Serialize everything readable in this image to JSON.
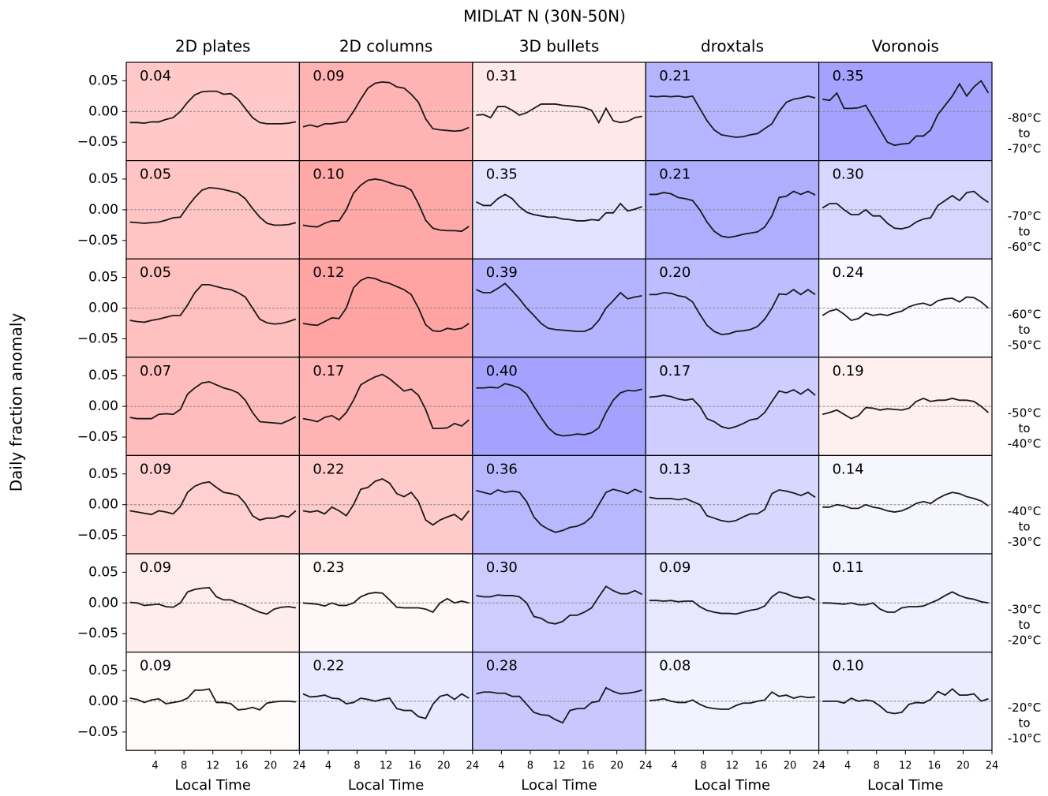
{
  "title": "MIDLAT N (30N-50N)",
  "ylabel": "Daily fraction anomaly",
  "xlabel": "Local Time",
  "columns": [
    "2D plates",
    "2D columns",
    "3D bullets",
    "droxtals",
    "Voronois"
  ],
  "rows": [
    [
      "-80°C",
      "to",
      "-70°C"
    ],
    [
      "-70°C",
      "to",
      "-60°C"
    ],
    [
      "-60°C",
      "to",
      "-50°C"
    ],
    [
      "-50°C",
      "to",
      "-40°C"
    ],
    [
      "-40°C",
      "to",
      "-30°C"
    ],
    [
      "-30°C",
      "to",
      "-20°C"
    ],
    [
      "-20°C",
      "to",
      "-10°C"
    ]
  ],
  "x": [
    0.5,
    1.5,
    2.5,
    3.5,
    4.5,
    5.5,
    6.5,
    7.5,
    8.5,
    9.5,
    10.5,
    11.5,
    12.5,
    13.5,
    14.5,
    15.5,
    16.5,
    17.5,
    18.5,
    19.5,
    20.5,
    21.5,
    22.5,
    23.5
  ],
  "xlim": [
    0,
    24
  ],
  "xticks": [
    4,
    8,
    12,
    16,
    20,
    24
  ],
  "ylim": [
    -0.08,
    0.08
  ],
  "yticks": [
    {
      "value": 0.05,
      "label": "0.05"
    },
    {
      "value": 0,
      "label": "0.00"
    },
    {
      "value": -0.05,
      "label": "−0.05"
    }
  ],
  "line_color": "#1a1a1a",
  "chart_data": [
    {
      "type": "line",
      "annotation": "0.04",
      "background": "#ffc9c9",
      "values": [
        -0.018,
        -0.018,
        -0.019,
        -0.017,
        -0.017,
        -0.013,
        -0.01,
        0.0,
        0.015,
        0.027,
        0.032,
        0.033,
        0.033,
        0.028,
        0.029,
        0.02,
        0.005,
        -0.01,
        -0.018,
        -0.02,
        -0.02,
        -0.02,
        -0.019,
        -0.017
      ]
    },
    {
      "type": "line",
      "annotation": "0.09",
      "background": "#ffb3b3",
      "values": [
        -0.025,
        -0.022,
        -0.025,
        -0.02,
        -0.02,
        -0.018,
        -0.017,
        0.0,
        0.02,
        0.038,
        0.046,
        0.048,
        0.047,
        0.04,
        0.038,
        0.028,
        0.015,
        -0.012,
        -0.028,
        -0.03,
        -0.031,
        -0.032,
        -0.031,
        -0.026
      ]
    },
    {
      "type": "line",
      "annotation": "0.31",
      "background": "#ffe8e8",
      "values": [
        -0.006,
        -0.005,
        -0.01,
        0.008,
        0.008,
        0.002,
        -0.006,
        -0.002,
        0.005,
        0.012,
        0.012,
        0.012,
        0.01,
        0.009,
        0.008,
        0.006,
        0.002,
        -0.018,
        0.005,
        -0.015,
        -0.018,
        -0.016,
        -0.01,
        -0.008
      ]
    },
    {
      "type": "line",
      "annotation": "0.21",
      "background": "#b5b5ff",
      "values": [
        0.025,
        0.024,
        0.025,
        0.024,
        0.025,
        0.023,
        0.025,
        0.005,
        -0.015,
        -0.03,
        -0.038,
        -0.04,
        -0.042,
        -0.041,
        -0.038,
        -0.036,
        -0.028,
        -0.02,
        0.0,
        0.015,
        0.02,
        0.022,
        0.025,
        0.022
      ]
    },
    {
      "type": "line",
      "annotation": "0.35",
      "background": "#a3a3ff",
      "values": [
        0.02,
        0.018,
        0.03,
        0.005,
        0.005,
        0.006,
        0.01,
        -0.01,
        -0.03,
        -0.05,
        -0.055,
        -0.053,
        -0.052,
        -0.04,
        -0.04,
        -0.03,
        -0.005,
        0.01,
        0.025,
        0.045,
        0.025,
        0.04,
        0.05,
        0.03
      ]
    },
    {
      "type": "line",
      "annotation": "0.05",
      "background": "#ffc4c4",
      "values": [
        -0.02,
        -0.021,
        -0.022,
        -0.021,
        -0.02,
        -0.017,
        -0.013,
        -0.012,
        0.005,
        0.02,
        0.032,
        0.036,
        0.035,
        0.033,
        0.03,
        0.027,
        0.018,
        0.002,
        -0.012,
        -0.022,
        -0.025,
        -0.025,
        -0.024,
        -0.021
      ]
    },
    {
      "type": "line",
      "annotation": "0.10",
      "background": "#ffa8a8",
      "values": [
        -0.025,
        -0.027,
        -0.028,
        -0.022,
        -0.018,
        -0.018,
        0.0,
        0.027,
        0.04,
        0.048,
        0.05,
        0.048,
        0.044,
        0.04,
        0.038,
        0.032,
        0.01,
        -0.017,
        -0.03,
        -0.033,
        -0.034,
        -0.034,
        -0.035,
        -0.027
      ]
    },
    {
      "type": "line",
      "annotation": "0.35",
      "background": "#e3e3ff",
      "values": [
        0.013,
        0.007,
        0.007,
        0.018,
        0.025,
        0.018,
        0.005,
        -0.004,
        -0.008,
        -0.01,
        -0.012,
        -0.012,
        -0.015,
        -0.016,
        -0.018,
        -0.018,
        -0.016,
        -0.017,
        -0.005,
        -0.005,
        0.01,
        -0.002,
        0.001,
        0.005
      ]
    },
    {
      "type": "line",
      "annotation": "0.21",
      "background": "#aeaeff",
      "values": [
        0.025,
        0.025,
        0.028,
        0.026,
        0.02,
        0.018,
        0.015,
        0.0,
        -0.02,
        -0.035,
        -0.043,
        -0.045,
        -0.043,
        -0.04,
        -0.038,
        -0.036,
        -0.028,
        -0.01,
        0.02,
        0.022,
        0.03,
        0.025,
        0.03,
        0.024
      ]
    },
    {
      "type": "line",
      "annotation": "0.30",
      "background": "#d6d6ff",
      "values": [
        0.003,
        0.01,
        0.01,
        0.0,
        -0.008,
        -0.008,
        0.0,
        -0.01,
        -0.01,
        -0.022,
        -0.03,
        -0.031,
        -0.028,
        -0.02,
        -0.015,
        -0.013,
        0.007,
        0.015,
        0.023,
        0.015,
        0.028,
        0.03,
        0.02,
        0.012
      ]
    },
    {
      "type": "line",
      "annotation": "0.05",
      "background": "#ffc0c0",
      "values": [
        -0.02,
        -0.022,
        -0.023,
        -0.02,
        -0.018,
        -0.015,
        -0.012,
        -0.012,
        0.005,
        0.025,
        0.038,
        0.038,
        0.035,
        0.032,
        0.03,
        0.025,
        0.018,
        0.0,
        -0.018,
        -0.024,
        -0.026,
        -0.025,
        -0.022,
        -0.018
      ]
    },
    {
      "type": "line",
      "annotation": "0.12",
      "background": "#ffa3a3",
      "values": [
        -0.025,
        -0.027,
        -0.028,
        -0.022,
        -0.016,
        -0.017,
        0.0,
        0.033,
        0.045,
        0.05,
        0.048,
        0.043,
        0.04,
        0.035,
        0.03,
        0.022,
        0.0,
        -0.027,
        -0.037,
        -0.038,
        -0.033,
        -0.035,
        -0.033,
        -0.025
      ]
    },
    {
      "type": "line",
      "annotation": "0.39",
      "background": "#b3b3ff",
      "values": [
        0.03,
        0.025,
        0.025,
        0.032,
        0.04,
        0.028,
        0.015,
        0.0,
        -0.012,
        -0.025,
        -0.033,
        -0.035,
        -0.036,
        -0.037,
        -0.038,
        -0.038,
        -0.033,
        -0.02,
        0.0,
        0.012,
        0.025,
        0.015,
        0.018,
        0.02
      ]
    },
    {
      "type": "line",
      "annotation": "0.20",
      "background": "#bdbdff",
      "values": [
        0.022,
        0.022,
        0.025,
        0.024,
        0.02,
        0.018,
        0.01,
        -0.01,
        -0.028,
        -0.038,
        -0.043,
        -0.042,
        -0.038,
        -0.037,
        -0.035,
        -0.03,
        -0.018,
        0.0,
        0.023,
        0.022,
        0.03,
        0.022,
        0.03,
        0.022
      ]
    },
    {
      "type": "line",
      "annotation": "0.24",
      "background": "#fbfbff",
      "values": [
        -0.012,
        -0.005,
        -0.002,
        -0.01,
        -0.02,
        -0.017,
        -0.008,
        -0.012,
        -0.01,
        -0.012,
        -0.008,
        -0.005,
        0.002,
        0.006,
        0.008,
        0.004,
        0.012,
        0.015,
        0.016,
        0.01,
        0.018,
        0.017,
        0.01,
        0.0
      ]
    },
    {
      "type": "line",
      "annotation": "0.07",
      "background": "#ffbcbc",
      "values": [
        -0.018,
        -0.02,
        -0.02,
        -0.02,
        -0.013,
        -0.012,
        -0.013,
        -0.005,
        0.02,
        0.03,
        0.038,
        0.04,
        0.035,
        0.03,
        0.027,
        0.022,
        0.01,
        -0.01,
        -0.025,
        -0.026,
        -0.027,
        -0.028,
        -0.023,
        -0.017
      ]
    },
    {
      "type": "line",
      "annotation": "0.17",
      "background": "#ffb3b3",
      "values": [
        -0.02,
        -0.022,
        -0.025,
        -0.018,
        -0.015,
        -0.022,
        -0.01,
        0.01,
        0.035,
        0.042,
        0.048,
        0.052,
        0.045,
        0.035,
        0.025,
        0.028,
        0.018,
        -0.005,
        -0.036,
        -0.036,
        -0.035,
        -0.028,
        -0.032,
        -0.022
      ]
    },
    {
      "type": "line",
      "annotation": "0.40",
      "background": "#a3a3ff",
      "values": [
        0.03,
        0.03,
        0.031,
        0.03,
        0.037,
        0.034,
        0.03,
        0.02,
        0.0,
        -0.018,
        -0.035,
        -0.045,
        -0.048,
        -0.047,
        -0.045,
        -0.046,
        -0.043,
        -0.035,
        -0.01,
        0.01,
        0.022,
        0.026,
        0.025,
        0.028
      ]
    },
    {
      "type": "line",
      "annotation": "0.17",
      "background": "#cdcdff",
      "values": [
        0.015,
        0.016,
        0.018,
        0.016,
        0.012,
        0.01,
        0.012,
        0.0,
        -0.02,
        -0.025,
        -0.033,
        -0.036,
        -0.033,
        -0.028,
        -0.022,
        -0.02,
        -0.01,
        0.008,
        0.025,
        0.022,
        0.027,
        0.02,
        0.028,
        0.018
      ]
    },
    {
      "type": "line",
      "annotation": "0.19",
      "background": "#fff0f0",
      "values": [
        -0.013,
        -0.01,
        -0.006,
        -0.013,
        -0.02,
        -0.015,
        -0.002,
        -0.003,
        -0.006,
        -0.004,
        -0.005,
        -0.006,
        -0.003,
        0.008,
        0.013,
        0.008,
        0.01,
        0.01,
        0.013,
        0.01,
        0.01,
        0.008,
        0.0,
        -0.01
      ]
    },
    {
      "type": "line",
      "annotation": "0.09",
      "background": "#ffd0d0",
      "values": [
        -0.01,
        -0.012,
        -0.014,
        -0.016,
        -0.01,
        -0.012,
        -0.015,
        -0.003,
        0.02,
        0.03,
        0.035,
        0.037,
        0.028,
        0.02,
        0.018,
        0.015,
        0.002,
        -0.018,
        -0.025,
        -0.022,
        -0.022,
        -0.018,
        -0.02,
        -0.01
      ]
    },
    {
      "type": "line",
      "annotation": "0.22",
      "background": "#ffcaca",
      "values": [
        -0.01,
        -0.012,
        -0.01,
        -0.015,
        -0.004,
        -0.01,
        -0.018,
        0.0,
        0.025,
        0.028,
        0.038,
        0.042,
        0.035,
        0.018,
        0.013,
        0.02,
        0.005,
        -0.025,
        -0.033,
        -0.025,
        -0.02,
        -0.016,
        -0.025,
        -0.01
      ]
    },
    {
      "type": "line",
      "annotation": "0.36",
      "background": "#b8b8ff",
      "values": [
        0.023,
        0.02,
        0.017,
        0.024,
        0.02,
        0.022,
        0.02,
        0.005,
        -0.02,
        -0.033,
        -0.04,
        -0.045,
        -0.042,
        -0.037,
        -0.035,
        -0.03,
        -0.02,
        0.0,
        0.02,
        0.025,
        0.022,
        0.018,
        0.025,
        0.02
      ]
    },
    {
      "type": "line",
      "annotation": "0.13",
      "background": "#d8d8ff",
      "values": [
        0.012,
        0.01,
        0.01,
        0.01,
        0.008,
        0.01,
        0.005,
        0.0,
        -0.018,
        -0.022,
        -0.026,
        -0.028,
        -0.026,
        -0.02,
        -0.015,
        -0.015,
        -0.008,
        0.018,
        0.024,
        0.022,
        0.019,
        0.015,
        0.02,
        0.012
      ]
    },
    {
      "type": "line",
      "annotation": "0.14",
      "background": "#f6f6ff",
      "values": [
        -0.004,
        -0.004,
        0.0,
        -0.002,
        -0.006,
        -0.006,
        0.0,
        -0.004,
        -0.006,
        -0.01,
        -0.012,
        -0.01,
        -0.005,
        0.002,
        0.005,
        0.002,
        0.01,
        0.016,
        0.02,
        0.018,
        0.013,
        0.01,
        0.006,
        -0.002
      ]
    },
    {
      "type": "line",
      "annotation": "0.09",
      "background": "#ffecec",
      "values": [
        0.001,
        0.0,
        -0.004,
        -0.003,
        -0.002,
        -0.006,
        -0.007,
        0.0,
        0.018,
        0.022,
        0.024,
        0.025,
        0.01,
        0.005,
        0.005,
        0.0,
        -0.004,
        -0.01,
        -0.015,
        -0.018,
        -0.01,
        -0.007,
        -0.006,
        -0.008
      ]
    },
    {
      "type": "line",
      "annotation": "0.23",
      "background": "#fff8f8",
      "values": [
        0.0,
        -0.001,
        -0.002,
        -0.005,
        0.0,
        -0.004,
        -0.004,
        0.0,
        0.01,
        0.015,
        0.017,
        0.016,
        0.005,
        -0.007,
        -0.008,
        -0.008,
        -0.008,
        -0.01,
        -0.015,
        0.0,
        0.007,
        0.0,
        0.003,
        0.0
      ]
    },
    {
      "type": "line",
      "annotation": "0.30",
      "background": "#ccccff",
      "values": [
        0.012,
        0.01,
        0.01,
        0.013,
        0.012,
        0.012,
        0.01,
        0.0,
        -0.022,
        -0.025,
        -0.032,
        -0.034,
        -0.03,
        -0.02,
        -0.02,
        -0.015,
        -0.008,
        0.01,
        0.027,
        0.02,
        0.015,
        0.015,
        0.02,
        0.014
      ]
    },
    {
      "type": "line",
      "annotation": "0.09",
      "background": "#e7e7ff",
      "values": [
        0.004,
        0.004,
        0.003,
        0.004,
        0.002,
        0.003,
        0.003,
        -0.006,
        -0.012,
        -0.015,
        -0.017,
        -0.017,
        -0.018,
        -0.015,
        -0.012,
        -0.01,
        -0.005,
        0.01,
        0.018,
        0.015,
        0.01,
        0.008,
        0.01,
        0.005
      ]
    },
    {
      "type": "line",
      "annotation": "0.11",
      "background": "#f0f0ff",
      "values": [
        0.0,
        0.0,
        -0.001,
        -0.002,
        0.0,
        -0.003,
        -0.003,
        0.0,
        -0.01,
        -0.015,
        -0.015,
        -0.008,
        -0.006,
        -0.006,
        -0.005,
        0.0,
        0.005,
        0.012,
        0.018,
        0.012,
        0.008,
        0.006,
        0.002,
        0.0
      ]
    },
    {
      "type": "line",
      "annotation": "0.09",
      "background": "#fffbfb",
      "values": [
        0.005,
        0.003,
        -0.002,
        0.002,
        0.004,
        -0.004,
        -0.002,
        0.0,
        0.005,
        0.018,
        0.018,
        0.02,
        -0.002,
        -0.002,
        -0.004,
        -0.014,
        -0.013,
        -0.01,
        -0.014,
        -0.003,
        -0.001,
        0.0,
        0.0,
        -0.001
      ]
    },
    {
      "type": "line",
      "annotation": "0.22",
      "background": "#e8e8ff",
      "values": [
        0.012,
        0.007,
        0.008,
        0.01,
        0.005,
        0.004,
        -0.004,
        -0.002,
        0.005,
        0.003,
        0.0,
        0.003,
        0.005,
        -0.012,
        -0.015,
        -0.015,
        -0.025,
        -0.028,
        -0.005,
        0.008,
        0.011,
        0.003,
        0.012,
        0.005
      ]
    },
    {
      "type": "line",
      "annotation": "0.28",
      "background": "#c8c8ff",
      "values": [
        0.012,
        0.015,
        0.015,
        0.013,
        0.013,
        0.008,
        0.008,
        -0.005,
        -0.018,
        -0.022,
        -0.023,
        -0.03,
        -0.035,
        -0.015,
        -0.012,
        -0.012,
        -0.002,
        0.0,
        0.022,
        0.016,
        0.012,
        0.013,
        0.015,
        0.018
      ]
    },
    {
      "type": "line",
      "annotation": "0.08",
      "background": "#f3f3ff",
      "values": [
        0.001,
        0.002,
        0.004,
        0.0,
        -0.002,
        -0.002,
        0.002,
        -0.005,
        -0.01,
        -0.012,
        -0.013,
        -0.013,
        -0.007,
        -0.003,
        -0.003,
        0.0,
        0.002,
        0.015,
        0.008,
        0.01,
        0.005,
        0.008,
        0.006,
        0.007
      ]
    },
    {
      "type": "line",
      "annotation": "0.10",
      "background": "#ececff",
      "values": [
        0.0,
        0.0,
        0.0,
        -0.003,
        0.005,
        0.0,
        0.002,
        0.0,
        -0.008,
        -0.018,
        -0.02,
        -0.018,
        -0.005,
        -0.002,
        -0.003,
        0.003,
        0.016,
        0.01,
        0.02,
        0.01,
        0.01,
        0.012,
        0.0,
        0.004
      ]
    }
  ]
}
